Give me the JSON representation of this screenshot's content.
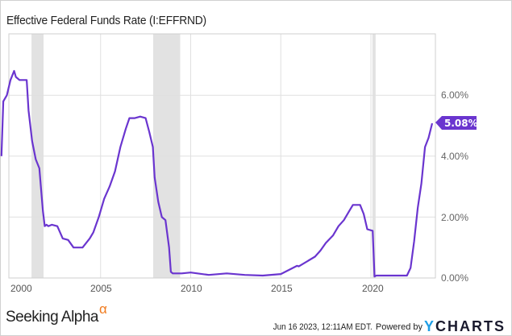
{
  "title": "Effective Federal Funds Rate (I:EFFRND)",
  "colors": {
    "line": "#6a35cf",
    "recession": "#e2e2e2",
    "grid": "#e0e0e0",
    "axis": "#cfcfcf",
    "alpha": "#f07a1c",
    "ycharts_y": "#1e9ee6"
  },
  "y_axis": {
    "labels": [
      "6.00%",
      "4.00%",
      "2.00%",
      "0.00%"
    ]
  },
  "x_axis": {
    "labels": [
      "2000",
      "2005",
      "2010",
      "2015",
      "2020"
    ]
  },
  "current_value_badge": "5.08%",
  "branding": {
    "name": "Seeking Alpha",
    "alpha_glyph": "α"
  },
  "footer": {
    "timestamp": "Jun 16 2023, 12:11AM EDT.",
    "powered_by": "Powered by",
    "provider_y": "Y",
    "provider_rest": "CHARTS"
  },
  "chart_data": {
    "type": "line",
    "title": "Effective Federal Funds Rate (I:EFFRND)",
    "xlabel": "",
    "ylabel": "",
    "ylim": [
      0,
      7
    ],
    "grid": true,
    "y_ticks": [
      "0.00%",
      "2.00%",
      "4.00%",
      "6.00%"
    ],
    "x_ticks": [
      "2000",
      "2005",
      "2010",
      "2015",
      "2020"
    ],
    "recession_periods": [
      [
        "2001-03",
        "2001-11"
      ],
      [
        "2007-12",
        "2009-06"
      ],
      [
        "2020-02",
        "2020-04"
      ]
    ],
    "series": [
      {
        "name": "Effective Federal Funds Rate",
        "x": [
          1999.5,
          1999.6,
          1999.8,
          2000.0,
          2000.2,
          2000.3,
          2000.5,
          2000.9,
          2001.0,
          2001.2,
          2001.4,
          2001.6,
          2001.8,
          2001.9,
          2002.0,
          2002.1,
          2002.3,
          2002.6,
          2002.9,
          2003.2,
          2003.5,
          2003.7,
          2004.0,
          2004.4,
          2004.6,
          2004.9,
          2005.2,
          2005.5,
          2005.8,
          2006.1,
          2006.4,
          2006.6,
          2006.9,
          2007.2,
          2007.5,
          2007.7,
          2007.9,
          2008.0,
          2008.2,
          2008.4,
          2008.6,
          2008.8,
          2008.9,
          2009.0,
          2009.5,
          2010.0,
          2011.0,
          2012.0,
          2013.0,
          2014.0,
          2015.0,
          2015.9,
          2016.0,
          2016.9,
          2017.2,
          2017.5,
          2017.9,
          2018.2,
          2018.5,
          2018.8,
          2019.0,
          2019.4,
          2019.6,
          2019.8,
          2020.1,
          2020.2,
          2020.3,
          2021.0,
          2022.0,
          2022.2,
          2022.4,
          2022.6,
          2022.8,
          2023.0,
          2023.2,
          2023.4
        ],
        "values": [
          4.0,
          5.8,
          6.0,
          6.5,
          6.8,
          6.6,
          6.5,
          6.5,
          5.5,
          4.5,
          3.9,
          3.6,
          2.2,
          1.7,
          1.75,
          1.7,
          1.75,
          1.7,
          1.3,
          1.25,
          1.0,
          1.0,
          1.0,
          1.3,
          1.5,
          2.0,
          2.6,
          3.0,
          3.5,
          4.3,
          4.9,
          5.25,
          5.25,
          5.3,
          5.25,
          4.8,
          4.3,
          3.3,
          2.5,
          2.0,
          1.9,
          1.0,
          0.2,
          0.15,
          0.15,
          0.18,
          0.1,
          0.15,
          0.1,
          0.08,
          0.13,
          0.4,
          0.38,
          0.7,
          0.9,
          1.15,
          1.4,
          1.7,
          1.9,
          2.2,
          2.4,
          2.4,
          2.1,
          1.6,
          1.55,
          0.05,
          0.08,
          0.08,
          0.08,
          0.33,
          1.2,
          2.3,
          3.1,
          4.3,
          4.6,
          5.08
        ]
      }
    ],
    "last_value_label": "5.08%"
  }
}
